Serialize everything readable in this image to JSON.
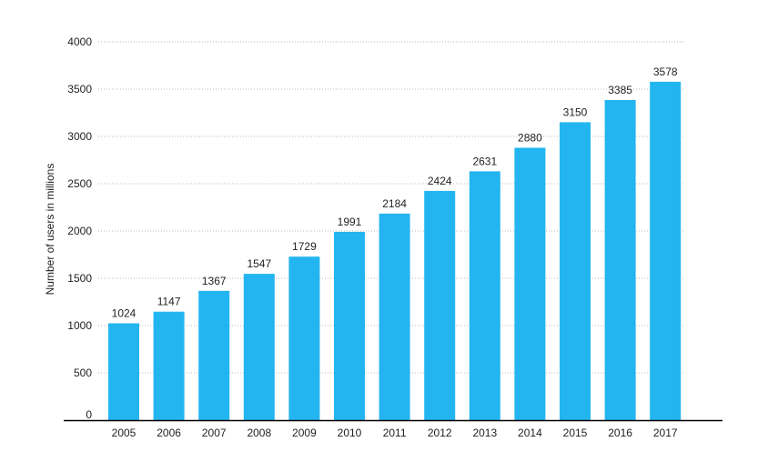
{
  "chart_data": {
    "type": "bar",
    "title": "",
    "xlabel": "",
    "ylabel": "Number of users in millions",
    "categories": [
      "2005",
      "2006",
      "2007",
      "2008",
      "2009",
      "2010",
      "2011",
      "2012",
      "2013",
      "2014",
      "2015",
      "2016",
      "2017"
    ],
    "values": [
      1024,
      1147,
      1367,
      1547,
      1729,
      1991,
      2184,
      2424,
      2631,
      2880,
      3150,
      3385,
      3578
    ],
    "ylim": [
      0,
      4000
    ],
    "yticks": [
      0,
      500,
      1000,
      1500,
      2000,
      2500,
      3000,
      3500,
      4000
    ],
    "grid": "horizontal dotted",
    "legend": "none",
    "bar_color": "#23b5f0",
    "axis_color": "#000000",
    "grid_color": "#b8b8b8"
  }
}
